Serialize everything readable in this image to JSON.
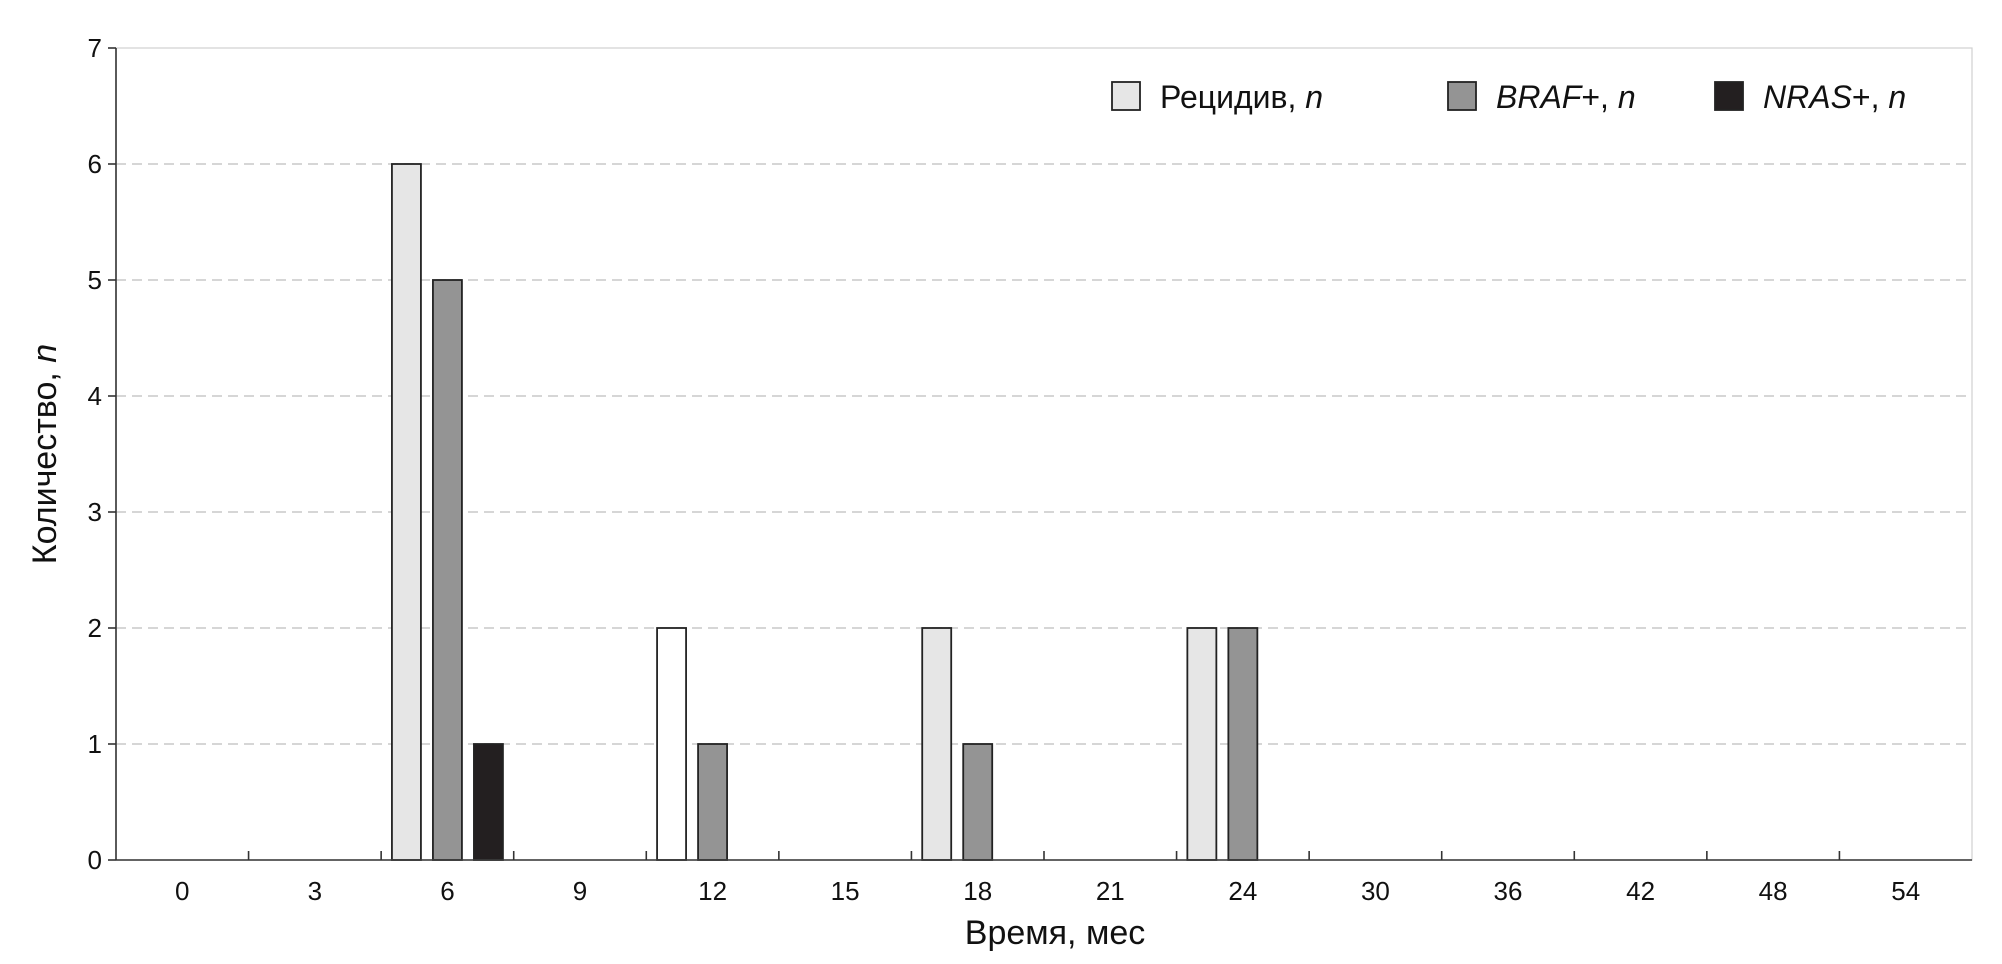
{
  "chart_data": {
    "type": "bar",
    "xlabel": "Время, мес",
    "ylabel_main": "Количество, ",
    "ylabel_italic": "n",
    "ylim": [
      0,
      7
    ],
    "yticks": [
      "0",
      "1",
      "2",
      "3",
      "4",
      "5",
      "6",
      "7"
    ],
    "categories": [
      "0",
      "3",
      "6",
      "9",
      "12",
      "15",
      "18",
      "21",
      "24",
      "30",
      "36",
      "42",
      "48",
      "54"
    ],
    "grid": "horizontal dashed",
    "legend_position": "top-right",
    "series": [
      {
        "key": "relapse",
        "label_parts": [
          {
            "text": "Рецидив, ",
            "italic": false
          },
          {
            "text": "n",
            "italic": true
          }
        ],
        "color": "#e6e6e6",
        "values": [
          0,
          0,
          6,
          0,
          2,
          0,
          2,
          0,
          2,
          0,
          0,
          0,
          0,
          0
        ]
      },
      {
        "key": "braf",
        "label_parts": [
          {
            "text": "BRAF",
            "italic": true
          },
          {
            "text": "+, ",
            "italic": false
          },
          {
            "text": "n",
            "italic": true
          }
        ],
        "color": "#949494",
        "values": [
          0,
          0,
          5,
          0,
          1,
          0,
          1,
          0,
          2,
          0,
          0,
          0,
          0,
          0
        ]
      },
      {
        "key": "nras",
        "label_parts": [
          {
            "text": "NRAS",
            "italic": true
          },
          {
            "text": "+, ",
            "italic": false
          },
          {
            "text": "n",
            "italic": true
          }
        ],
        "color": "#231f20",
        "values": [
          0,
          0,
          1,
          0,
          0,
          0,
          0,
          0,
          0,
          0,
          0,
          0,
          0,
          0
        ]
      }
    ],
    "special_fills": [
      {
        "series": "relapse",
        "category": "12",
        "color": "#ffffff"
      }
    ]
  }
}
